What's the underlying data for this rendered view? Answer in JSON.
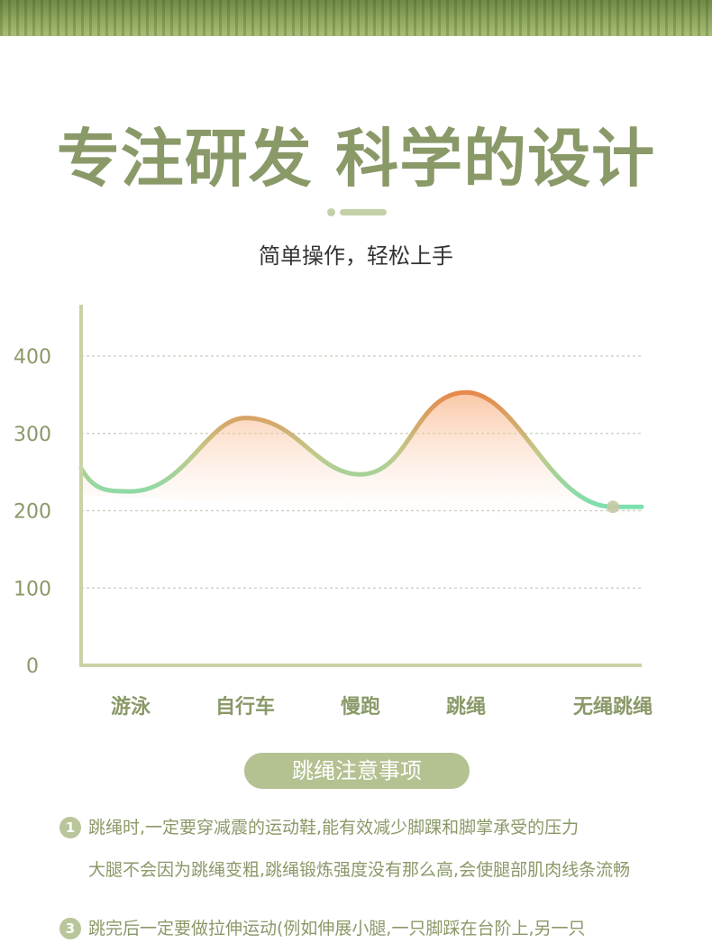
{
  "headline": "专注研发 科学的设计",
  "subtitle": "简单操作，轻松上手",
  "chart_data": {
    "type": "line",
    "categories": [
      "游泳",
      "自行车",
      "慢跑",
      "跳绳",
      "无绳跳绳"
    ],
    "values": [
      225,
      320,
      247,
      353,
      205
    ],
    "ylim": [
      0,
      400
    ],
    "yticks": [
      0,
      100,
      200,
      300,
      400
    ],
    "title": "",
    "xlabel": "",
    "ylabel": "",
    "grid": "horizontal dashed",
    "colors": {
      "low": "#72e3b3",
      "mid": "#b9c590",
      "high": "#ee7a3c",
      "axis": "#c9d3a6",
      "tick": "#8a9968"
    }
  },
  "notes_title": "跳绳注意事项",
  "notes": [
    {
      "num": "1",
      "text": "跳绳时,一定要穿减震的运动鞋,能有效减少脚踝和脚掌承受的压力"
    },
    {
      "num": "",
      "text": "大腿不会因为跳绳变粗,跳绳锻炼强度没有那么高,会使腿部肌肉线条流畅"
    },
    {
      "num": "3",
      "text": "跳完后一定要做拉伸运动(例如伸展小腿,一只脚踩在台阶上,另一只"
    }
  ]
}
